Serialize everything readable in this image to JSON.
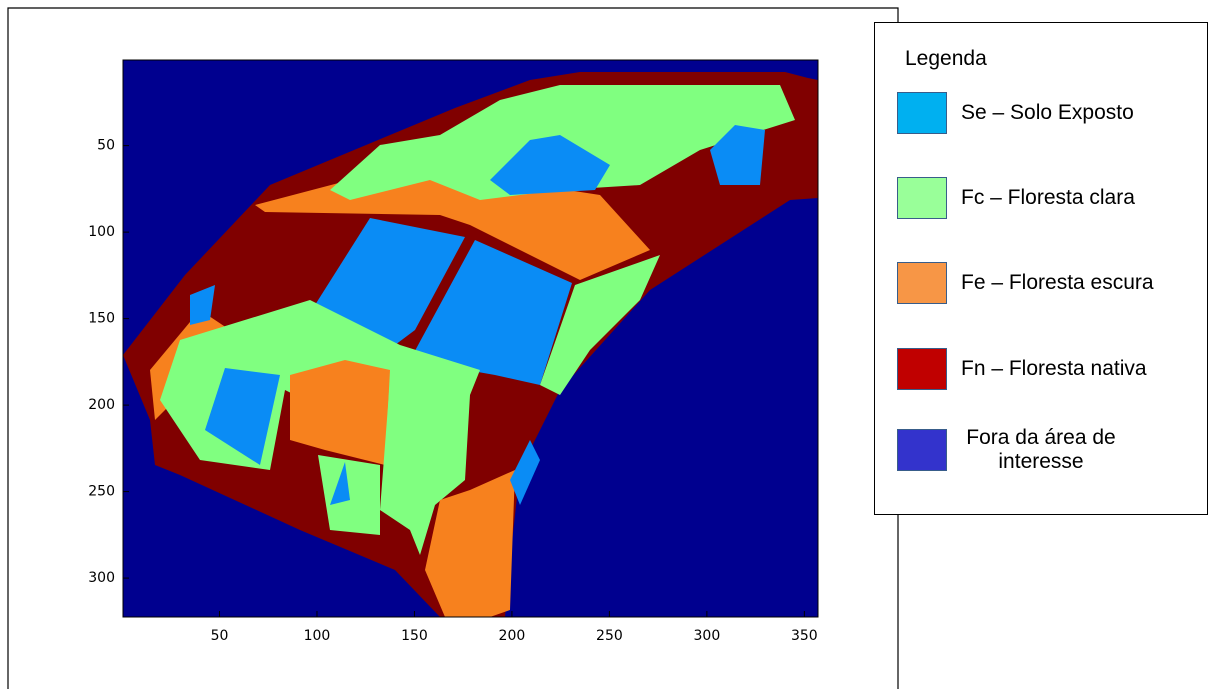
{
  "chart_data": {
    "type": "image",
    "xlim": [
      0.5,
      357
    ],
    "ylim": [
      0.5,
      322.5
    ],
    "y_reversed": true,
    "xticks": [
      50,
      100,
      150,
      200,
      250,
      300,
      350
    ],
    "yticks": [
      50,
      100,
      150,
      200,
      250,
      300
    ],
    "legend": {
      "title": "Legenda",
      "entries": [
        {
          "label": "Se – Solo Exposto",
          "color": "#00b0f0"
        },
        {
          "label": "Fc – Floresta clara",
          "color": "#99ff99"
        },
        {
          "label": "Fe – Floresta escura",
          "color": "#f79646"
        },
        {
          "label": "Fn – Floresta nativa",
          "color": "#c00000"
        },
        {
          "label": "Fora da área de interesse",
          "color": "#3333cc"
        }
      ]
    }
  }
}
